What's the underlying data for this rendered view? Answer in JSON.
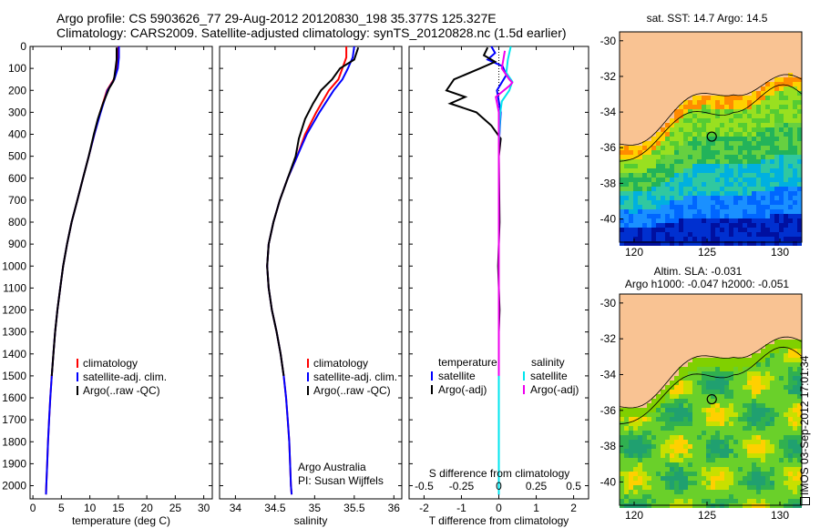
{
  "header": {
    "line1": "Argo profile: CS 5903626_77 29-Aug-2012 20120830_198 35.377S 125.327E",
    "line2": "Climatology: CARS2009. Satellite-adjusted climatology: synTS_20120828.nc (1.5d earlier)"
  },
  "timestamp": "IMOS 03-Sep-2012 17:01:34",
  "credits": {
    "project": "Argo Australia",
    "pi": "PI: Susan Wijffels"
  },
  "colors": {
    "climatology": "#ff0000",
    "satellite": "#0000ff",
    "argo": "#000000",
    "salinity_sat": "#00e5ee",
    "salinity_argo": "#ee00ee",
    "land": "#f9c393"
  },
  "chart_data": [
    {
      "type": "line",
      "id": "temperature-profile",
      "xlabel": "temperature (deg C)",
      "xlim": [
        -0.5,
        31.5
      ],
      "ylim": [
        2060,
        0
      ],
      "y_inverted": true,
      "xticks": [
        0,
        5,
        10,
        15,
        20,
        25,
        30
      ],
      "yticks": [
        0,
        100,
        200,
        300,
        400,
        500,
        600,
        700,
        800,
        900,
        1000,
        1100,
        1200,
        1300,
        1400,
        1500,
        1600,
        1700,
        1800,
        1900,
        2000
      ],
      "legend": [
        "climatology",
        "satellite-adj. clim.",
        "Argo(..raw -QC)"
      ],
      "series": [
        {
          "name": "climatology",
          "color": "#ff0000",
          "points": [
            [
              15,
              0
            ],
            [
              15,
              50
            ],
            [
              14.8,
              100
            ],
            [
              14.2,
              150
            ],
            [
              13,
              200
            ],
            [
              11.8,
              300
            ],
            [
              10.8,
              400
            ],
            [
              9.8,
              500
            ],
            [
              8.8,
              600
            ],
            [
              7.8,
              700
            ],
            [
              6.8,
              800
            ],
            [
              6,
              900
            ],
            [
              5.3,
              1000
            ],
            [
              4.8,
              1100
            ],
            [
              4.3,
              1200
            ],
            [
              3.9,
              1300
            ],
            [
              3.6,
              1400
            ],
            [
              3.3,
              1500
            ],
            [
              3.05,
              1600
            ],
            [
              2.85,
              1700
            ],
            [
              2.65,
              1800
            ],
            [
              2.5,
              1900
            ],
            [
              2.35,
              2000
            ],
            [
              2.3,
              2040
            ]
          ]
        },
        {
          "name": "satellite-adj. clim.",
          "color": "#0000ff",
          "points": [
            [
              15.1,
              0
            ],
            [
              15.1,
              50
            ],
            [
              14.9,
              100
            ],
            [
              14.3,
              150
            ],
            [
              13.1,
              200
            ],
            [
              11.9,
              300
            ],
            [
              10.8,
              400
            ],
            [
              9.8,
              500
            ],
            [
              8.8,
              600
            ],
            [
              7.8,
              700
            ],
            [
              6.8,
              800
            ],
            [
              6,
              900
            ],
            [
              5.3,
              1000
            ],
            [
              4.8,
              1100
            ],
            [
              4.3,
              1200
            ],
            [
              3.9,
              1300
            ],
            [
              3.6,
              1400
            ],
            [
              3.3,
              1500
            ],
            [
              3.05,
              1600
            ],
            [
              2.85,
              1700
            ],
            [
              2.65,
              1800
            ],
            [
              2.5,
              1900
            ],
            [
              2.35,
              2000
            ],
            [
              2.3,
              2040
            ]
          ]
        },
        {
          "name": "Argo(..raw -QC)",
          "color": "#000000",
          "points": [
            [
              14.7,
              5
            ],
            [
              14.7,
              60
            ],
            [
              14.5,
              100
            ],
            [
              14.3,
              140
            ],
            [
              14.1,
              160
            ],
            [
              13.4,
              190
            ],
            [
              12.3,
              260
            ],
            [
              11.4,
              330
            ],
            [
              10.7,
              400
            ],
            [
              9.8,
              500
            ],
            [
              8.8,
              600
            ],
            [
              7.8,
              700
            ],
            [
              6.8,
              800
            ],
            [
              6,
              900
            ],
            [
              5.3,
              1000
            ],
            [
              4.8,
              1100
            ],
            [
              4.3,
              1200
            ],
            [
              3.9,
              1300
            ],
            [
              3.6,
              1400
            ],
            [
              3.3,
              1500
            ]
          ]
        }
      ]
    },
    {
      "type": "line",
      "id": "salinity-profile",
      "xlabel": "salinity",
      "xlim": [
        33.8,
        36.1
      ],
      "ylim": [
        2060,
        0
      ],
      "y_inverted": true,
      "xticks": [
        34,
        34.5,
        35,
        35.5,
        36
      ],
      "legend": [
        "climatology",
        "satellite-adj. clim.",
        "Argo(..raw -QC)"
      ],
      "series": [
        {
          "name": "climatology",
          "color": "#ff0000",
          "points": [
            [
              35.4,
              0
            ],
            [
              35.4,
              50
            ],
            [
              35.35,
              100
            ],
            [
              35.3,
              150
            ],
            [
              35.18,
              200
            ],
            [
              35.02,
              300
            ],
            [
              34.88,
              400
            ],
            [
              34.78,
              500
            ],
            [
              34.66,
              600
            ],
            [
              34.56,
              700
            ],
            [
              34.48,
              800
            ],
            [
              34.42,
              900
            ],
            [
              34.4,
              1000
            ],
            [
              34.42,
              1100
            ],
            [
              34.46,
              1200
            ],
            [
              34.52,
              1300
            ],
            [
              34.57,
              1400
            ],
            [
              34.61,
              1500
            ],
            [
              34.64,
              1600
            ],
            [
              34.66,
              1700
            ],
            [
              34.68,
              1800
            ],
            [
              34.69,
              1900
            ],
            [
              34.7,
              2000
            ],
            [
              34.71,
              2040
            ]
          ]
        },
        {
          "name": "satellite-adj. clim.",
          "color": "#0000ff",
          "points": [
            [
              35.5,
              0
            ],
            [
              35.48,
              50
            ],
            [
              35.42,
              100
            ],
            [
              35.35,
              150
            ],
            [
              35.24,
              200
            ],
            [
              35.06,
              300
            ],
            [
              34.9,
              400
            ],
            [
              34.78,
              500
            ],
            [
              34.66,
              600
            ],
            [
              34.56,
              700
            ],
            [
              34.48,
              800
            ],
            [
              34.42,
              900
            ],
            [
              34.4,
              1000
            ],
            [
              34.42,
              1100
            ],
            [
              34.46,
              1200
            ],
            [
              34.52,
              1300
            ],
            [
              34.57,
              1400
            ],
            [
              34.61,
              1500
            ],
            [
              34.64,
              1600
            ],
            [
              34.66,
              1700
            ],
            [
              34.68,
              1800
            ],
            [
              34.69,
              1900
            ],
            [
              34.7,
              2000
            ],
            [
              34.71,
              2040
            ]
          ]
        },
        {
          "name": "Argo(..raw -QC)",
          "color": "#000000",
          "points": [
            [
              35.55,
              5
            ],
            [
              35.5,
              60
            ],
            [
              35.32,
              100
            ],
            [
              35.22,
              150
            ],
            [
              35.08,
              200
            ],
            [
              34.98,
              260
            ],
            [
              34.88,
              330
            ],
            [
              34.8,
              420
            ],
            [
              34.76,
              500
            ],
            [
              34.66,
              600
            ],
            [
              34.56,
              700
            ],
            [
              34.48,
              800
            ],
            [
              34.42,
              900
            ],
            [
              34.4,
              1000
            ],
            [
              34.42,
              1100
            ],
            [
              34.46,
              1200
            ],
            [
              34.52,
              1300
            ],
            [
              34.57,
              1400
            ],
            [
              34.61,
              1500
            ]
          ]
        }
      ]
    },
    {
      "type": "line",
      "id": "difference-profile",
      "xlabel": "T difference from climatology",
      "xlim": [
        -2.4,
        2.4
      ],
      "ylim": [
        2060,
        0
      ],
      "y_inverted": true,
      "xticks": [
        -2,
        -1,
        0,
        1,
        2
      ],
      "top_axis_label": "S difference from climatology",
      "top_ticks": [
        "-0.5",
        "-0.25",
        "0",
        "0.25",
        "0.5"
      ],
      "top_tick_values": [
        -0.5,
        -0.25,
        0,
        0.25,
        0.5
      ],
      "legend_groups": [
        {
          "title": "temperature",
          "entries": [
            "satellite",
            "Argo(-adj)"
          ]
        },
        {
          "title": "salinity",
          "entries": [
            "satellite",
            "Argo(-adj)"
          ]
        }
      ],
      "series": [
        {
          "name": "T satellite",
          "color": "#0000ff",
          "points": [
            [
              -0.2,
              0
            ],
            [
              -0.1,
              30
            ],
            [
              -0.3,
              60
            ],
            [
              0.1,
              90
            ],
            [
              0.2,
              130
            ],
            [
              -0.05,
              200
            ],
            [
              0.05,
              300
            ],
            [
              0,
              450
            ],
            [
              0,
              2040
            ]
          ]
        },
        {
          "name": "T Argo(-adj)",
          "color": "#000000",
          "points": [
            [
              -0.3,
              5
            ],
            [
              -0.4,
              40
            ],
            [
              -0.1,
              70
            ],
            [
              -0.5,
              100
            ],
            [
              -1.2,
              150
            ],
            [
              -1.4,
              200
            ],
            [
              -0.9,
              230
            ],
            [
              -1.3,
              260
            ],
            [
              -0.6,
              300
            ],
            [
              -0.2,
              360
            ],
            [
              0.05,
              420
            ],
            [
              0,
              500
            ],
            [
              0.02,
              800
            ],
            [
              -0.02,
              1000
            ],
            [
              0.02,
              1200
            ],
            [
              0,
              1300
            ],
            [
              0,
              1500
            ]
          ]
        },
        {
          "name": "S satellite",
          "color": "#00e5ee",
          "points": [
            [
              0.08,
              0
            ],
            [
              0.06,
              60
            ],
            [
              0.05,
              120
            ],
            [
              0.09,
              160
            ],
            [
              0.07,
              200
            ],
            [
              0.02,
              250
            ],
            [
              0.01,
              300
            ],
            [
              0,
              450
            ],
            [
              0,
              2040
            ]
          ]
        },
        {
          "name": "S Argo(-adj)",
          "color": "#ee00ee",
          "points": [
            [
              0.04,
              20
            ],
            [
              0.02,
              100
            ],
            [
              0.07,
              150
            ],
            [
              0.09,
              165
            ],
            [
              0.07,
              180
            ],
            [
              -0.02,
              230
            ],
            [
              0,
              300
            ],
            [
              0,
              600
            ],
            [
              0,
              1500
            ]
          ]
        }
      ]
    },
    {
      "type": "heatmap",
      "id": "sst-map",
      "title": "sat. SST: 14.7  Argo: 14.5",
      "xticks": [
        120,
        125,
        130
      ],
      "yticks": [
        -30,
        -32,
        -34,
        -36,
        -38,
        -40
      ],
      "xlim": [
        119,
        131.5
      ],
      "ylim": [
        -41.3,
        -29.5
      ],
      "profile_location": [
        125.327,
        -35.377
      ]
    },
    {
      "type": "heatmap",
      "id": "sla-map",
      "title_line1": "Altim. SLA: -0.031",
      "title_line2": "Argo h1000: -0.047 h2000: -0.051",
      "xticks": [
        120,
        125,
        130
      ],
      "yticks": [
        -30,
        -32,
        -34,
        -36,
        -38,
        -40
      ],
      "xlim": [
        119,
        131.5
      ],
      "ylim": [
        -41.3,
        -29.5
      ],
      "profile_location": [
        125.327,
        -35.377
      ]
    }
  ]
}
